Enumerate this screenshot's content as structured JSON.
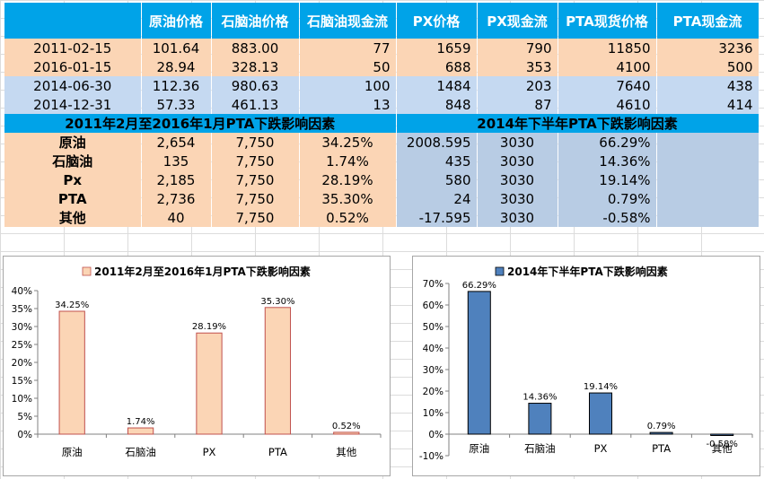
{
  "table": {
    "headers": [
      "",
      "原油价格",
      "石脑油价格",
      "石脑油现金流",
      "PX价格",
      "PX现金流",
      "PTA现货价格",
      "PTA现金流"
    ],
    "rows": [
      {
        "date": "2011-02-15",
        "cells": [
          "101.64",
          "883.00",
          "77",
          "1659",
          "790",
          "11850",
          "3236"
        ],
        "style": "peach"
      },
      {
        "date": "2016-01-15",
        "cells": [
          "28.94",
          "328.13",
          "50",
          "688",
          "353",
          "4100",
          "500"
        ],
        "style": "peach"
      },
      {
        "date": "2014-06-30",
        "cells": [
          "112.36",
          "980.63",
          "100",
          "1484",
          "203",
          "7640",
          "438"
        ],
        "style": "blue"
      },
      {
        "date": "2014-12-31",
        "cells": [
          "57.33",
          "461.13",
          "13",
          "848",
          "87",
          "4610",
          "414"
        ],
        "style": "blue"
      }
    ],
    "section_left_title": "2011年2月至2016年1月PTA下跌影响因素",
    "section_right_title": "2014年下半年PTA下跌影响因素",
    "factors": [
      {
        "label": "原油",
        "left": [
          "2,654",
          "7,750",
          "34.25%"
        ],
        "right": [
          "2008.595",
          "3030",
          "66.29%"
        ]
      },
      {
        "label": "石脑油",
        "left": [
          "135",
          "7,750",
          "1.74%"
        ],
        "right": [
          "435",
          "3030",
          "14.36%"
        ]
      },
      {
        "label": "Px",
        "left": [
          "2,185",
          "7,750",
          "28.19%"
        ],
        "right": [
          "580",
          "3030",
          "19.14%"
        ]
      },
      {
        "label": "PTA",
        "left": [
          "2,736",
          "7,750",
          "35.30%"
        ],
        "right": [
          "24",
          "3030",
          "0.79%"
        ]
      },
      {
        "label": "其他",
        "left": [
          "40",
          "7,750",
          "0.52%"
        ],
        "right": [
          "-17.595",
          "3030",
          "-0.58%"
        ]
      }
    ]
  },
  "chart_data": [
    {
      "type": "bar",
      "title": "2011年2月至2016年1月PTA下跌影响因素",
      "legend_position": "top",
      "categories": [
        "原油",
        "石脑油",
        "PX",
        "PTA",
        "其他"
      ],
      "values": [
        34.25,
        1.74,
        28.19,
        35.3,
        0.52
      ],
      "data_labels": [
        "34.25%",
        "1.74%",
        "28.19%",
        "35.30%",
        "0.52%"
      ],
      "ylim": [
        0,
        40
      ],
      "yticks": [
        0,
        5,
        10,
        15,
        20,
        25,
        30,
        35,
        40
      ],
      "ytick_labels": [
        "0%",
        "5%",
        "10%",
        "15%",
        "20%",
        "25%",
        "30%",
        "35%",
        "40%"
      ],
      "bar_color": "#fbd5b5",
      "bar_stroke": "#c0504d",
      "grid": false
    },
    {
      "type": "bar",
      "title": "2014年下半年PTA下跌影响因素",
      "legend_position": "top",
      "categories": [
        "原油",
        "石脑油",
        "PX",
        "PTA",
        "其他"
      ],
      "values": [
        66.29,
        14.36,
        19.14,
        0.79,
        -0.58
      ],
      "data_labels": [
        "66.29%",
        "14.36%",
        "19.14%",
        "0.79%",
        "-0.58%"
      ],
      "ylim": [
        -10,
        70
      ],
      "yticks": [
        -10,
        0,
        10,
        20,
        30,
        40,
        50,
        60,
        70
      ],
      "ytick_labels": [
        "-10%",
        "0%",
        "10%",
        "20%",
        "30%",
        "40%",
        "50%",
        "60%",
        "70%"
      ],
      "bar_color": "#4f81bd",
      "bar_stroke": "#000000",
      "grid": false
    }
  ]
}
